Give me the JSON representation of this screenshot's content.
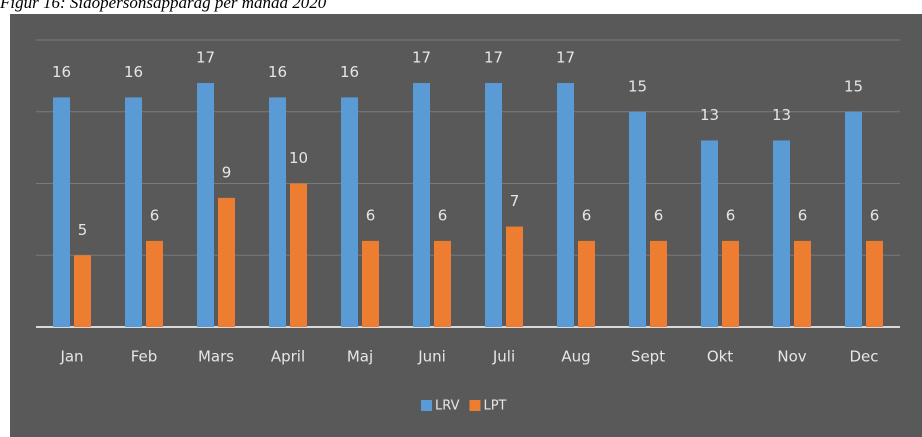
{
  "chart_data": {
    "type": "bar",
    "title": "Figur 16: Sidopersonsapparag per månad 2020",
    "categories": [
      "Jan",
      "Feb",
      "Mars",
      "April",
      "Maj",
      "Juni",
      "Juli",
      "Aug",
      "Sept",
      "Okt",
      "Nov",
      "Dec"
    ],
    "series": [
      {
        "name": "LRV",
        "color": "#5b9bd5",
        "values": [
          16,
          16,
          17,
          16,
          16,
          17,
          17,
          17,
          15,
          13,
          13,
          15
        ]
      },
      {
        "name": "LPT",
        "color": "#ed7d31",
        "values": [
          5,
          6,
          9,
          10,
          6,
          6,
          7,
          6,
          6,
          6,
          6,
          6
        ]
      }
    ],
    "ylim": [
      0,
      20
    ],
    "yticks": [
      0,
      5,
      10,
      15,
      20
    ],
    "grid": true,
    "legend": "bottom"
  }
}
